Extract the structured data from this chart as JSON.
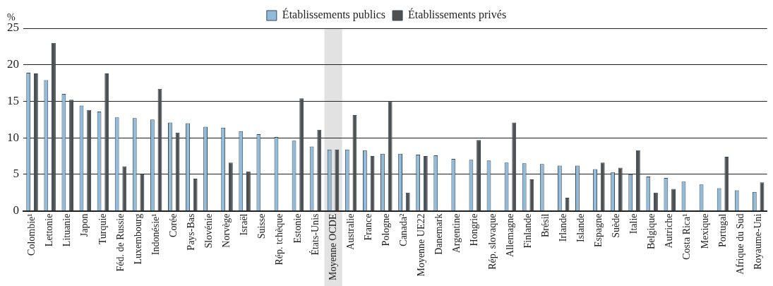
{
  "chart_data": {
    "type": "bar",
    "ylabel": "%",
    "categories": [
      "Colombie¹",
      "Lettonie",
      "Lituanie",
      "Japon",
      "Turquie",
      "Féd. de Russie",
      "Luxembourg",
      "Indonésie¹",
      "Corée",
      "Pays-Bas",
      "Slovénie",
      "Norvège",
      "Israël",
      "Suisse",
      "Rép. tchèque",
      "Estonie",
      "États-Unis",
      "Moyenne OCDE",
      "Australie",
      "France",
      "Pologne",
      "Canada²",
      "Moyenne UE22",
      "Danemark",
      "Argentine",
      "Hongrie",
      "Rép. slovaque",
      "Allemagne",
      "Finlande",
      "Brésil",
      "Irlande",
      "Islande",
      "Espagne",
      "Suède",
      "Italie",
      "Belgique",
      "Autriche",
      "Costa Rica¹",
      "Mexique",
      "Portugal",
      "Afrique du Sud",
      "Royaume-Uni"
    ],
    "series": [
      {
        "name": "Établissements publics",
        "color": "#92bad9",
        "values": [
          18.9,
          17.9,
          16.0,
          14.4,
          13.6,
          12.8,
          12.7,
          12.5,
          12.1,
          12.0,
          11.5,
          11.4,
          10.9,
          10.5,
          10.1,
          9.6,
          8.8,
          8.4,
          8.4,
          8.3,
          7.8,
          7.8,
          7.7,
          7.6,
          7.1,
          7.0,
          6.9,
          6.6,
          6.5,
          6.4,
          6.2,
          6.2,
          5.7,
          5.3,
          5.0,
          4.7,
          4.5,
          4.0,
          3.6,
          3.1,
          2.8,
          2.6
        ]
      },
      {
        "name": "Établissements privés",
        "color": "#505050",
        "values": [
          18.8,
          23.0,
          15.2,
          13.8,
          18.8,
          6.1,
          5.0,
          16.7,
          10.7,
          4.4,
          null,
          6.6,
          5.4,
          null,
          null,
          15.4,
          11.1,
          8.4,
          13.1,
          7.5,
          15.0,
          2.5,
          7.5,
          null,
          null,
          9.7,
          null,
          12.1,
          4.3,
          null,
          1.8,
          null,
          6.6,
          5.9,
          8.3,
          2.5,
          3.0,
          null,
          null,
          7.4,
          null,
          3.9
        ]
      }
    ],
    "ylim": [
      0,
      25
    ],
    "yticks": [
      0,
      5,
      10,
      15,
      20,
      25
    ],
    "grid": "y",
    "legend": "top",
    "bands": [
      {
        "axis": "x",
        "from": "Moyenne OCDE",
        "to": "Moyenne OCDE",
        "color": "#e2e2e2"
      }
    ]
  }
}
